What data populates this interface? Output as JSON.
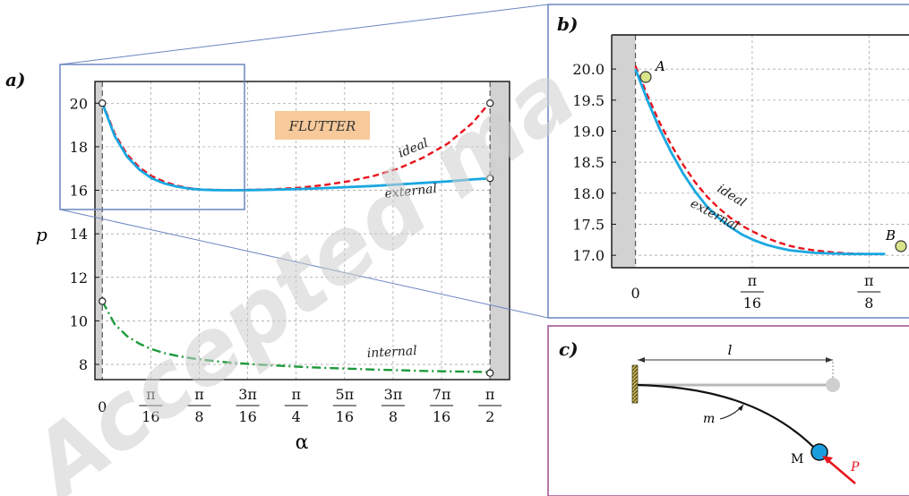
{
  "watermark": "Accepted ma",
  "panels": {
    "a": {
      "label": "a)"
    },
    "b": {
      "label": "b)"
    },
    "c": {
      "label": "c)"
    }
  },
  "annotations": {
    "flutter": "FLUTTER",
    "ideal": "ideal",
    "external": "external",
    "internal": "internal",
    "point_A": "A",
    "point_B": "B",
    "length_l": "l",
    "mass_m": "m",
    "mass_M": "M",
    "force_P": "P"
  },
  "colors": {
    "ideal": "#e8141b",
    "external": "#1aa7e0",
    "internal": "#1c9a3a",
    "frame_ab": "#6a86c0",
    "frame_c": "#9a4f8e",
    "flutter_box": "#f8c99a",
    "shade": "#d2d2d2",
    "mass_M": "#1a9ee0",
    "point_fill": "#d8e38a"
  },
  "chart_data": [
    {
      "type": "line",
      "panel": "a",
      "xlabel": "α",
      "ylabel": "p",
      "xlim": [
        -0.03,
        1.65
      ],
      "ylim": [
        7.3,
        21.0
      ],
      "x_ticks": [
        0,
        0.19635,
        0.3927,
        0.58905,
        0.7854,
        0.98175,
        1.1781,
        1.37445,
        1.5708
      ],
      "x_ticklabels": [
        {
          "num": "0",
          "den": ""
        },
        {
          "num": "π",
          "den": "16"
        },
        {
          "num": "π",
          "den": "8"
        },
        {
          "num": "3π",
          "den": "16"
        },
        {
          "num": "π",
          "den": "4"
        },
        {
          "num": "5π",
          "den": "16"
        },
        {
          "num": "3π",
          "den": "8"
        },
        {
          "num": "7π",
          "den": "16"
        },
        {
          "num": "π",
          "den": "2"
        }
      ],
      "y_ticks": [
        8,
        10,
        12,
        14,
        16,
        18,
        20
      ],
      "y_ticklabels": [
        "8",
        "10",
        "12",
        "14",
        "16",
        "18",
        "20"
      ],
      "grid": true,
      "series": [
        {
          "name": "ideal",
          "style": "dashed",
          "x": [
            0,
            0.05,
            0.1,
            0.15,
            0.2,
            0.25,
            0.3,
            0.35,
            0.4,
            0.45,
            0.5,
            0.55,
            0.6,
            0.7,
            0.8,
            0.9,
            1.0,
            1.1,
            1.2,
            1.3,
            1.4,
            1.5,
            1.5708
          ],
          "y": [
            20.05,
            18.6,
            17.65,
            17.05,
            16.65,
            16.4,
            16.22,
            16.1,
            16.04,
            16.02,
            16.01,
            16.01,
            16.02,
            16.05,
            16.12,
            16.24,
            16.42,
            16.66,
            17.0,
            17.5,
            18.15,
            19.1,
            20.05
          ]
        },
        {
          "name": "external",
          "style": "solid",
          "x": [
            0,
            0.05,
            0.1,
            0.15,
            0.2,
            0.25,
            0.3,
            0.35,
            0.4,
            0.45,
            0.5,
            0.55,
            0.6,
            0.7,
            0.8,
            0.9,
            1.0,
            1.1,
            1.2,
            1.3,
            1.4,
            1.5,
            1.5708
          ],
          "y": [
            20.0,
            18.5,
            17.55,
            16.95,
            16.55,
            16.32,
            16.18,
            16.08,
            16.03,
            16.01,
            16.0,
            16.0,
            16.01,
            16.03,
            16.06,
            16.1,
            16.15,
            16.2,
            16.27,
            16.34,
            16.41,
            16.5,
            16.55
          ]
        },
        {
          "name": "internal",
          "style": "dashdot",
          "x": [
            0,
            0.05,
            0.1,
            0.15,
            0.2,
            0.25,
            0.3,
            0.35,
            0.4,
            0.5,
            0.6,
            0.7,
            0.8,
            0.9,
            1.0,
            1.1,
            1.2,
            1.3,
            1.4,
            1.5,
            1.5708
          ],
          "y": [
            10.9,
            9.85,
            9.3,
            8.95,
            8.7,
            8.52,
            8.4,
            8.3,
            8.22,
            8.1,
            8.01,
            7.95,
            7.89,
            7.84,
            7.8,
            7.76,
            7.73,
            7.7,
            7.68,
            7.66,
            7.64
          ]
        }
      ],
      "endpoints": [
        {
          "x": 0,
          "y": 20.0
        },
        {
          "x": 1.5708,
          "y": 20.0
        },
        {
          "x": 1.5708,
          "y": 16.55
        },
        {
          "x": 0,
          "y": 10.9
        },
        {
          "x": 1.5708,
          "y": 7.6
        }
      ]
    },
    {
      "type": "line",
      "panel": "b",
      "xlim": [
        -0.04,
        0.46
      ],
      "ylim": [
        16.8,
        20.55
      ],
      "x_ticks": [
        0,
        0.19635,
        0.3927
      ],
      "x_ticklabels": [
        {
          "num": "0",
          "den": ""
        },
        {
          "num": "π",
          "den": "16"
        },
        {
          "num": "π",
          "den": "8"
        }
      ],
      "y_ticks": [
        17.0,
        17.5,
        18.0,
        18.5,
        19.0,
        19.5,
        20.0
      ],
      "y_ticklabels": [
        "17.0",
        "17.5",
        "18.0",
        "18.5",
        "19.0",
        "19.5",
        "20.0"
      ],
      "grid": true,
      "series": [
        {
          "name": "ideal",
          "style": "dashed",
          "x": [
            0,
            0.02,
            0.04,
            0.06,
            0.08,
            0.1,
            0.12,
            0.14,
            0.16,
            0.18,
            0.2,
            0.22,
            0.24,
            0.26,
            0.28,
            0.3,
            0.33,
            0.36,
            0.3927,
            0.42
          ],
          "y": [
            20.05,
            19.58,
            19.15,
            18.78,
            18.46,
            18.18,
            17.95,
            17.76,
            17.6,
            17.47,
            17.37,
            17.28,
            17.21,
            17.15,
            17.11,
            17.08,
            17.05,
            17.03,
            17.02,
            17.02
          ]
        },
        {
          "name": "external",
          "style": "solid",
          "x": [
            0,
            0.02,
            0.04,
            0.06,
            0.08,
            0.1,
            0.12,
            0.14,
            0.16,
            0.18,
            0.2,
            0.22,
            0.24,
            0.26,
            0.28,
            0.3,
            0.33,
            0.36,
            0.3927,
            0.42
          ],
          "y": [
            20.0,
            19.5,
            19.05,
            18.66,
            18.32,
            18.03,
            17.79,
            17.6,
            17.45,
            17.33,
            17.24,
            17.17,
            17.12,
            17.08,
            17.06,
            17.04,
            17.03,
            17.02,
            17.02,
            17.02
          ]
        }
      ]
    }
  ]
}
